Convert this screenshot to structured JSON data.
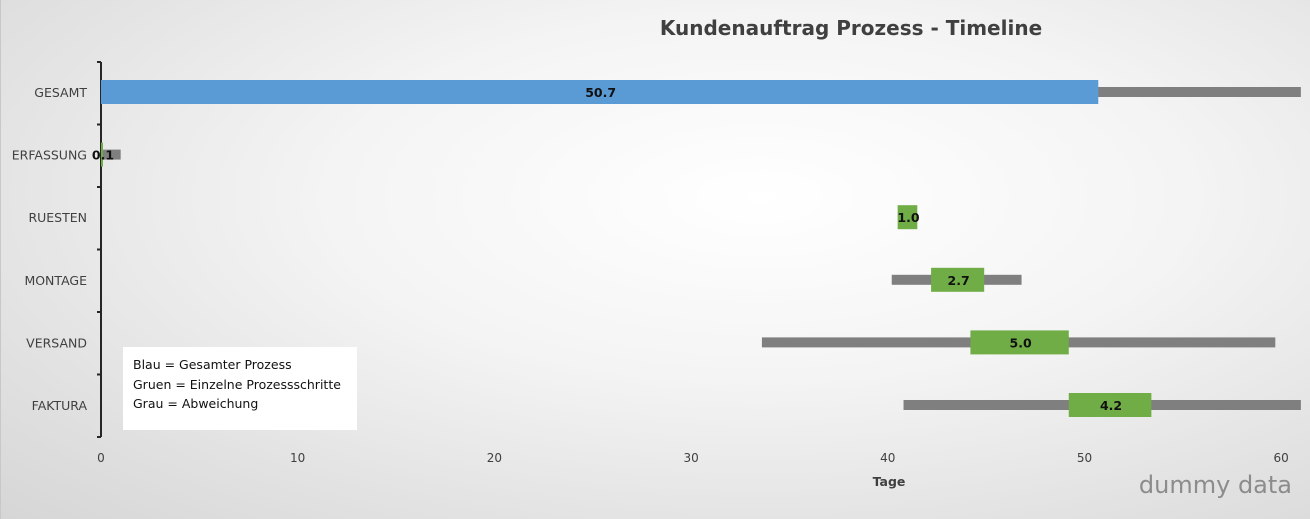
{
  "chart_data": {
    "type": "bar",
    "orientation": "horizontal",
    "title": "Kundenauftrag Prozess - Timeline",
    "xlabel": "Tage",
    "ylabel": "",
    "xlim": [
      0,
      61
    ],
    "xticks": [
      "0",
      "10",
      "20",
      "30",
      "40",
      "50",
      "60"
    ],
    "categories": [
      "GESAMT",
      "ERFASSUNG",
      "RUESTEN",
      "MONTAGE",
      "VERSAND",
      "FAKTURA"
    ],
    "bars": [
      {
        "category": "GESAMT",
        "start": 0.0,
        "duration": 50.7,
        "label": "50.7",
        "color": "#5b9bd5",
        "range": [
          0.0,
          61.0
        ]
      },
      {
        "category": "ERFASSUNG",
        "start": 0.0,
        "duration": 0.1,
        "label": "0.1",
        "color": "#70ad47",
        "range": [
          0.0,
          1.0
        ]
      },
      {
        "category": "RUESTEN",
        "start": 40.5,
        "duration": 1.0,
        "label": "1.0",
        "color": "#70ad47",
        "range": null
      },
      {
        "category": "MONTAGE",
        "start": 42.2,
        "duration": 2.7,
        "label": "2.7",
        "color": "#70ad47",
        "range": [
          40.2,
          46.8
        ]
      },
      {
        "category": "VERSAND",
        "start": 44.2,
        "duration": 5.0,
        "label": "5.0",
        "color": "#70ad47",
        "range": [
          33.6,
          59.7
        ]
      },
      {
        "category": "FAKTURA",
        "start": 49.2,
        "duration": 4.2,
        "label": "4.2",
        "color": "#70ad47",
        "range": [
          40.8,
          61.0
        ]
      }
    ],
    "deviation_color": "#7f7f7f",
    "grid": false,
    "legend": {
      "placement": "bottom-left",
      "lines": [
        "Blau = Gesamter Prozess",
        "Gruen = Einzelne Prozessschritte",
        "Grau = Abweichung"
      ]
    }
  },
  "watermark": "dummy data"
}
